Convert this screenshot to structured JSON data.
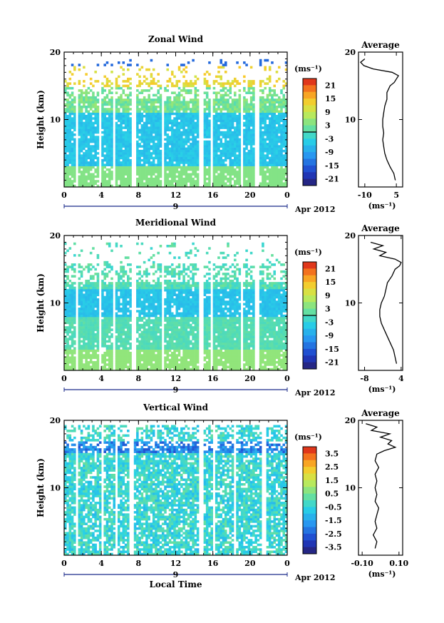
{
  "chart_data": [
    {
      "type": "heatmap",
      "title": "Zonal Wind",
      "ylabel": "Height (km)",
      "xlabel": "",
      "x_ticks": [
        "0",
        "4",
        "8",
        "12",
        "16",
        "20",
        "0"
      ],
      "y_ticks": [
        "10",
        "20"
      ],
      "xlim": [
        0,
        24
      ],
      "ylim": [
        0,
        20
      ],
      "date_label": "9",
      "month_label": "Apr 2012",
      "colorbar": {
        "units": "(ms⁻¹)",
        "range": [
          -24,
          24
        ],
        "ticks": [
          "21",
          "15",
          "9",
          "3",
          "-3",
          "-9",
          "-15",
          "-21"
        ],
        "zero_line": 0
      },
      "profile": {
        "title": "Average",
        "units": "(ms⁻¹)",
        "x_ticks": [
          "-10",
          "5"
        ],
        "xlim": [
          -13,
          8
        ],
        "y_ticks": [
          "10",
          "20"
        ],
        "height": [
          1.0,
          2.0,
          3.0,
          4.0,
          5.0,
          6.0,
          7.0,
          8.0,
          9.0,
          10.0,
          11.0,
          12.0,
          13.0,
          14.0,
          15.0,
          15.5,
          16.0,
          16.5,
          17.0,
          17.5,
          18.0,
          18.5,
          19.0
        ],
        "value": [
          4.5,
          3.8,
          2.0,
          0.5,
          -0.5,
          -1.0,
          -1.5,
          -1.0,
          -1.5,
          -1.5,
          -1.0,
          -0.5,
          0.5,
          0.5,
          2.0,
          4.0,
          5.0,
          6.0,
          3.0,
          -6.0,
          -10.5,
          -12.0,
          -10.0
        ]
      }
    },
    {
      "type": "heatmap",
      "title": "Meridional Wind",
      "ylabel": "Height (km)",
      "xlabel": "",
      "x_ticks": [
        "0",
        "4",
        "8",
        "12",
        "16",
        "20",
        "0"
      ],
      "y_ticks": [
        "10",
        "20"
      ],
      "xlim": [
        0,
        24
      ],
      "ylim": [
        0,
        20
      ],
      "date_label": "9",
      "month_label": "Apr 2012",
      "colorbar": {
        "units": "(ms⁻¹)",
        "range": [
          -24,
          24
        ],
        "ticks": [
          "21",
          "15",
          "9",
          "3",
          "-3",
          "-9",
          "-15",
          "-21"
        ],
        "zero_line": 0
      },
      "profile": {
        "title": "Average",
        "units": "(ms⁻¹)",
        "x_ticks": [
          "-8",
          "4"
        ],
        "xlim": [
          -10,
          4.5
        ],
        "y_ticks": [
          "10",
          "20"
        ],
        "height": [
          1.0,
          2.0,
          3.0,
          4.0,
          5.0,
          6.0,
          7.0,
          8.0,
          9.0,
          10.0,
          11.0,
          12.0,
          13.0,
          14.0,
          15.0,
          15.5,
          16.0,
          16.5,
          17.0,
          17.5,
          18.0,
          18.5,
          19.0
        ],
        "value": [
          2.5,
          2.0,
          1.5,
          0.5,
          -0.5,
          -1.5,
          -2.5,
          -3.0,
          -3.0,
          -2.5,
          -1.5,
          -1.0,
          -0.5,
          1.0,
          2.0,
          3.5,
          4.0,
          2.0,
          -3.0,
          -1.0,
          -5.0,
          -2.0,
          -6.0
        ]
      }
    },
    {
      "type": "heatmap",
      "title": "Vertical Wind",
      "ylabel": "Height (km)",
      "xlabel": "Local Time",
      "x_ticks": [
        "0",
        "4",
        "8",
        "12",
        "16",
        "20",
        "0"
      ],
      "y_ticks": [
        "10",
        "20"
      ],
      "xlim": [
        0,
        24
      ],
      "ylim": [
        0,
        20
      ],
      "date_label": "9",
      "month_label": "Apr 2012",
      "colorbar": {
        "units": "(ms⁻¹)",
        "range": [
          -4,
          4
        ],
        "ticks": [
          "3.5",
          "2.5",
          "1.5",
          "0.5",
          "-0.5",
          "-1.5",
          "-2.5",
          "-3.5"
        ],
        "zero_line": null
      },
      "profile": {
        "title": "Average",
        "units": "(ms⁻¹)",
        "x_ticks": [
          "-0.10",
          "0.10"
        ],
        "xlim": [
          -0.12,
          0.12
        ],
        "y_ticks": [
          "10",
          "20"
        ],
        "height": [
          1.0,
          2.0,
          3.0,
          4.0,
          5.0,
          6.0,
          7.0,
          8.0,
          9.0,
          10.0,
          11.0,
          12.0,
          13.0,
          14.0,
          15.0,
          15.5,
          16.0,
          16.5,
          17.0,
          17.5,
          18.0,
          18.5,
          19.0,
          19.5
        ],
        "value": [
          -0.03,
          -0.02,
          -0.04,
          -0.02,
          -0.03,
          -0.02,
          -0.01,
          -0.03,
          -0.02,
          -0.03,
          -0.02,
          -0.03,
          -0.01,
          -0.03,
          -0.02,
          0.02,
          0.08,
          0.04,
          0.06,
          0.0,
          0.05,
          -0.05,
          -0.02,
          -0.08
        ]
      }
    }
  ]
}
